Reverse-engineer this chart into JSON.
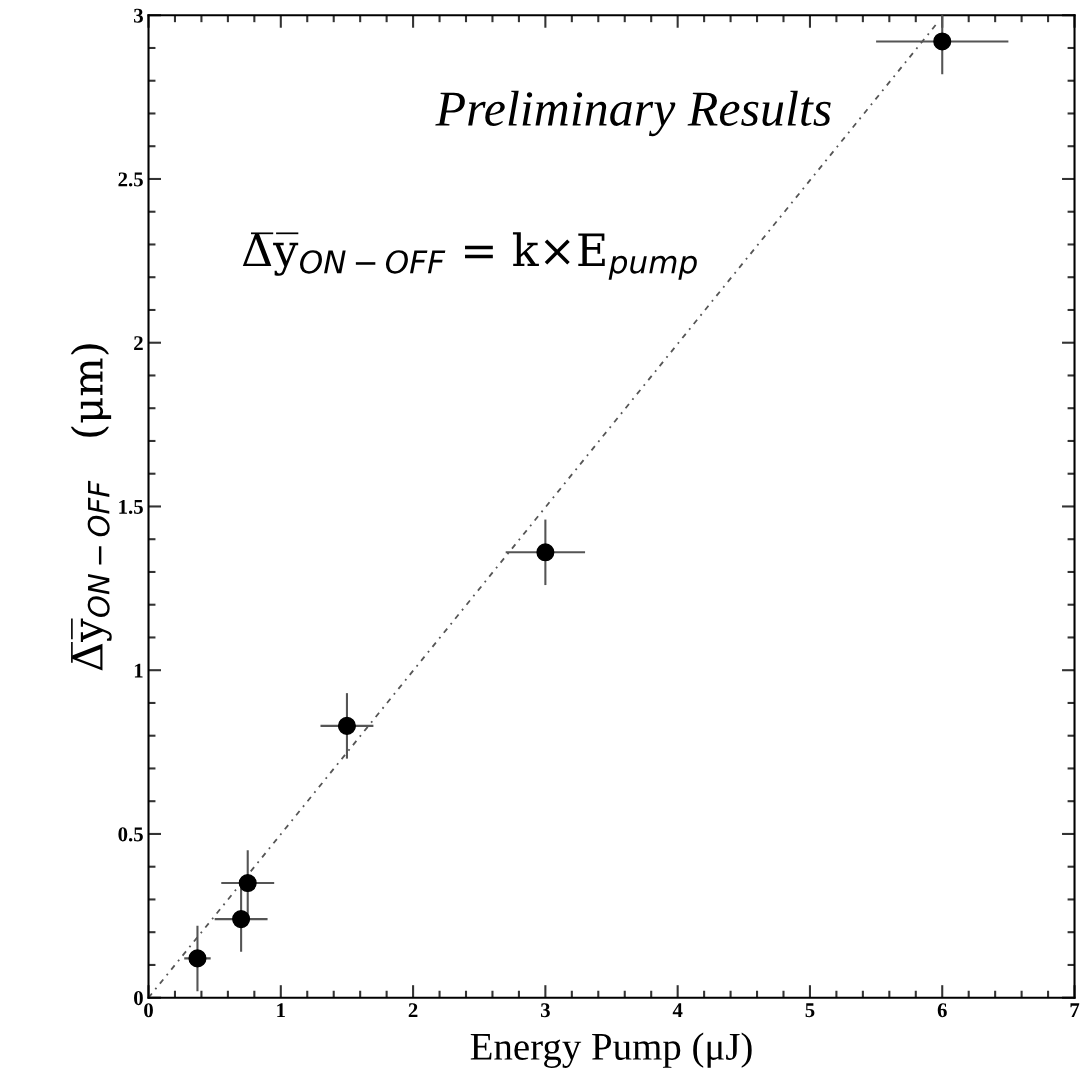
{
  "chart_data": {
    "type": "scatter",
    "xlabel": "Energy Pump (μJ)",
    "ylabel": "Δ̅y̅$_{ON−OFF}$   (μm)",
    "annotations": [
      "Preliminary Results",
      "Δ̅y̅$_{ON−OFF}$ = k×E$_{pump}$"
    ],
    "series": [
      {
        "color": "#000000",
        "marker": "circle",
        "x": [
          0.37,
          0.7,
          0.75,
          1.5,
          3.0,
          6.0
        ],
        "values": [
          0.12,
          0.24,
          0.35,
          0.83,
          1.36,
          2.92
        ],
        "errors": [
          0.1,
          0.1,
          0.1,
          0.1,
          0.1,
          0.1
        ],
        "xerrors": [
          0.1,
          0.2,
          0.2,
          0.2,
          0.3,
          0.5
        ]
      },
      {
        "type": "line",
        "color": "#555555",
        "line_style": "dotted",
        "marker": "none",
        "x": [
          0,
          5.95
        ],
        "values": [
          0,
          2.97
        ]
      }
    ],
    "xlim": [
      0,
      7
    ],
    "ylim": [
      0,
      3
    ],
    "xticks": [
      0,
      1,
      2,
      3,
      4,
      5,
      6,
      7
    ],
    "yticks": [
      0,
      0.5,
      1,
      1.5,
      2,
      2.5,
      3
    ],
    "grid": false,
    "legend": false
  }
}
